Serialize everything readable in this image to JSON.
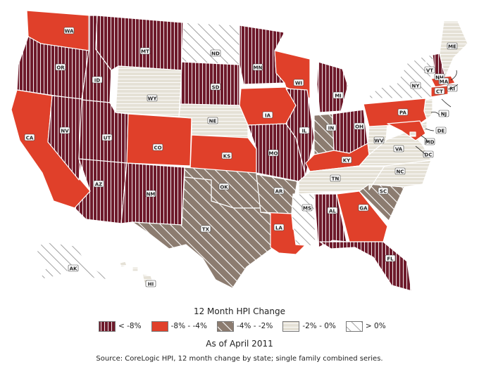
{
  "legend": {
    "title": "12 Month HPI Change",
    "items": [
      {
        "id": "c1",
        "label": "< -8%",
        "color": "#6e1a2b",
        "pattern": "vertical"
      },
      {
        "id": "c2",
        "label": "-8% - -4%",
        "color": "#e0402a",
        "pattern": "solid"
      },
      {
        "id": "c3",
        "label": "-4% - -2%",
        "color": "#8c7c70",
        "pattern": "diagonal"
      },
      {
        "id": "c4",
        "label": "-2% - 0%",
        "color": "#e5e1d6",
        "pattern": "horizontal"
      },
      {
        "id": "c5",
        "label": "> 0%",
        "color": "#ffffff",
        "pattern": "diagonal-light"
      }
    ]
  },
  "as_of": "As of April 2011",
  "source": "Source: CoreLogic HPI, 12 month change by state; single family combined series.",
  "states": [
    {
      "abbr": "WA",
      "cls": "c2"
    },
    {
      "abbr": "OR",
      "cls": "c1"
    },
    {
      "abbr": "CA",
      "cls": "c2"
    },
    {
      "abbr": "NV",
      "cls": "c1"
    },
    {
      "abbr": "ID",
      "cls": "c1"
    },
    {
      "abbr": "MT",
      "cls": "c1"
    },
    {
      "abbr": "WY",
      "cls": "c4"
    },
    {
      "abbr": "UT",
      "cls": "c1"
    },
    {
      "abbr": "AZ",
      "cls": "c1"
    },
    {
      "abbr": "CO",
      "cls": "c2"
    },
    {
      "abbr": "NM",
      "cls": "c1"
    },
    {
      "abbr": "ND",
      "cls": "c5"
    },
    {
      "abbr": "SD",
      "cls": "c1"
    },
    {
      "abbr": "NE",
      "cls": "c4"
    },
    {
      "abbr": "KS",
      "cls": "c2"
    },
    {
      "abbr": "OK",
      "cls": "c3"
    },
    {
      "abbr": "TX",
      "cls": "c3"
    },
    {
      "abbr": "MN",
      "cls": "c1"
    },
    {
      "abbr": "IA",
      "cls": "c2"
    },
    {
      "abbr": "MO",
      "cls": "c1"
    },
    {
      "abbr": "AR",
      "cls": "c3"
    },
    {
      "abbr": "LA",
      "cls": "c2"
    },
    {
      "abbr": "WI",
      "cls": "c2"
    },
    {
      "abbr": "IL",
      "cls": "c1"
    },
    {
      "abbr": "MI",
      "cls": "c1"
    },
    {
      "abbr": "IN",
      "cls": "c3"
    },
    {
      "abbr": "OH",
      "cls": "c1"
    },
    {
      "abbr": "KY",
      "cls": "c2"
    },
    {
      "abbr": "TN",
      "cls": "c4"
    },
    {
      "abbr": "MS",
      "cls": "c5"
    },
    {
      "abbr": "AL",
      "cls": "c1"
    },
    {
      "abbr": "GA",
      "cls": "c2"
    },
    {
      "abbr": "FL",
      "cls": "c1"
    },
    {
      "abbr": "SC",
      "cls": "c3"
    },
    {
      "abbr": "NC",
      "cls": "c4"
    },
    {
      "abbr": "VA",
      "cls": "c4"
    },
    {
      "abbr": "WV",
      "cls": "c4"
    },
    {
      "abbr": "PA",
      "cls": "c2"
    },
    {
      "abbr": "NY",
      "cls": "c5"
    },
    {
      "abbr": "VT",
      "cls": "c5"
    },
    {
      "abbr": "NH",
      "cls": "c1"
    },
    {
      "abbr": "ME",
      "cls": "c4"
    },
    {
      "abbr": "MA",
      "cls": "c2"
    },
    {
      "abbr": "RI",
      "cls": "c2"
    },
    {
      "abbr": "CT",
      "cls": "c2"
    },
    {
      "abbr": "NJ",
      "cls": "c4"
    },
    {
      "abbr": "DE",
      "cls": "c4"
    },
    {
      "abbr": "MD",
      "cls": "c2"
    },
    {
      "abbr": "DC",
      "cls": "c4"
    },
    {
      "abbr": "AK",
      "cls": "c5"
    },
    {
      "abbr": "HI",
      "cls": "c4"
    }
  ]
}
